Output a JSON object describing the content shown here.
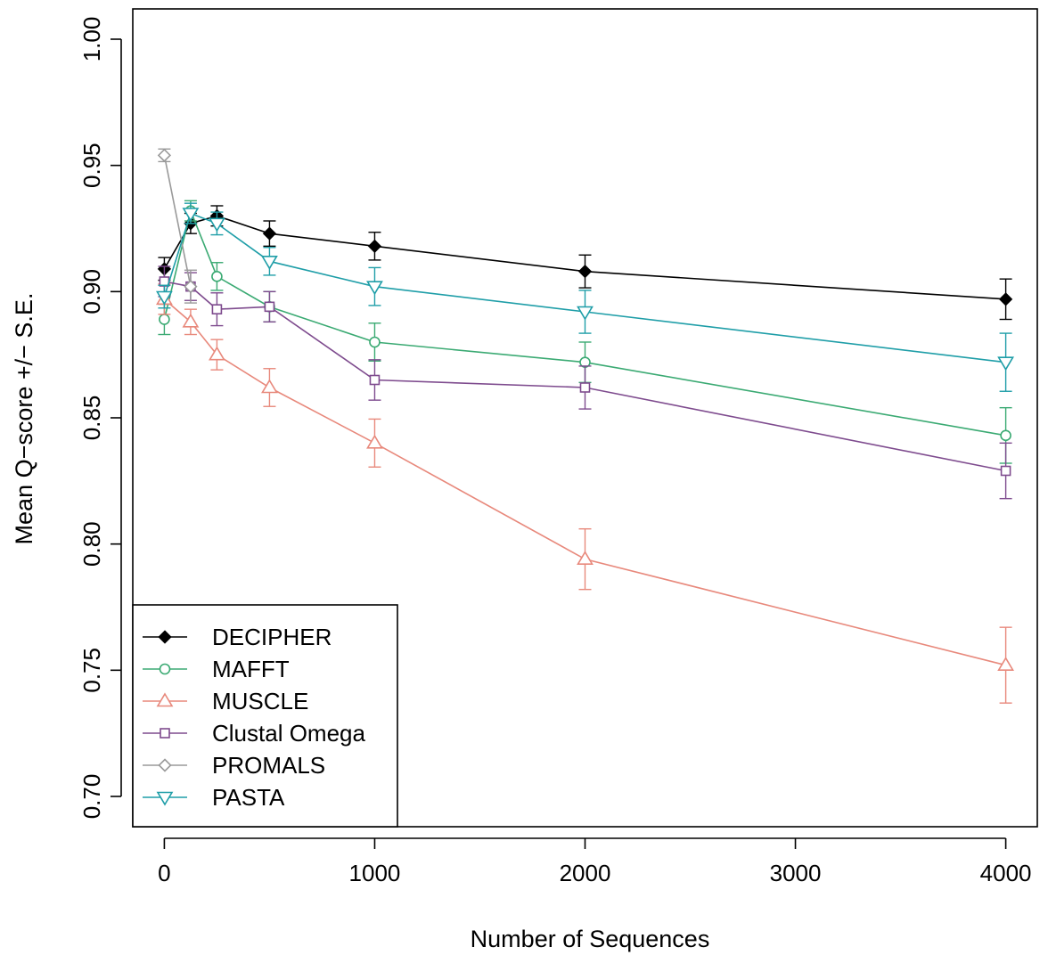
{
  "chart_data": {
    "type": "line",
    "title": "",
    "xlabel": "Number of Sequences",
    "ylabel": "Mean Q−score +/− S.E.",
    "xlim": [
      -150,
      4150
    ],
    "ylim": [
      0.688,
      1.012
    ],
    "x_ticks": [
      0,
      1000,
      2000,
      3000,
      4000
    ],
    "x_tick_labels": [
      "0",
      "1000",
      "2000",
      "3000",
      "4000"
    ],
    "y_ticks": [
      0.7,
      0.75,
      0.8,
      0.85,
      0.9,
      0.95,
      1.0
    ],
    "y_tick_labels": [
      "0.70",
      "0.75",
      "0.80",
      "0.85",
      "0.90",
      "0.95",
      "1.00"
    ],
    "grid": false,
    "legend_position": "bottom-left",
    "series": [
      {
        "name": "DECIPHER",
        "color": "#000000",
        "marker": "diamond-filled",
        "points": [
          {
            "x": 0,
            "y": 0.909,
            "se": 0.0045
          },
          {
            "x": 125,
            "y": 0.927,
            "se": 0.004
          },
          {
            "x": 250,
            "y": 0.93,
            "se": 0.004
          },
          {
            "x": 500,
            "y": 0.923,
            "se": 0.005
          },
          {
            "x": 1000,
            "y": 0.918,
            "se": 0.0055
          },
          {
            "x": 2000,
            "y": 0.908,
            "se": 0.0065
          },
          {
            "x": 4000,
            "y": 0.897,
            "se": 0.008
          }
        ]
      },
      {
        "name": "MAFFT",
        "color": "#3BAA73",
        "marker": "circle",
        "points": [
          {
            "x": 0,
            "y": 0.889,
            "se": 0.006
          },
          {
            "x": 125,
            "y": 0.932,
            "se": 0.004
          },
          {
            "x": 250,
            "y": 0.906,
            "se": 0.0055
          },
          {
            "x": 500,
            "y": 0.894,
            "se": 0.006
          },
          {
            "x": 1000,
            "y": 0.88,
            "se": 0.0075
          },
          {
            "x": 2000,
            "y": 0.872,
            "se": 0.008
          },
          {
            "x": 4000,
            "y": 0.843,
            "se": 0.011
          }
        ]
      },
      {
        "name": "MUSCLE",
        "color": "#E8897C",
        "marker": "triangle-up",
        "points": [
          {
            "x": 0,
            "y": 0.897,
            "se": 0.006
          },
          {
            "x": 125,
            "y": 0.888,
            "se": 0.005
          },
          {
            "x": 250,
            "y": 0.875,
            "se": 0.006
          },
          {
            "x": 500,
            "y": 0.862,
            "se": 0.0075
          },
          {
            "x": 1000,
            "y": 0.84,
            "se": 0.0095
          },
          {
            "x": 2000,
            "y": 0.794,
            "se": 0.012
          },
          {
            "x": 4000,
            "y": 0.752,
            "se": 0.015
          }
        ]
      },
      {
        "name": "Clustal Omega",
        "color": "#7E4B8E",
        "marker": "square",
        "points": [
          {
            "x": 0,
            "y": 0.904,
            "se": 0.006
          },
          {
            "x": 125,
            "y": 0.902,
            "se": 0.0055
          },
          {
            "x": 250,
            "y": 0.893,
            "se": 0.0065
          },
          {
            "x": 500,
            "y": 0.894,
            "se": 0.006
          },
          {
            "x": 1000,
            "y": 0.865,
            "se": 0.008
          },
          {
            "x": 2000,
            "y": 0.862,
            "se": 0.0085
          },
          {
            "x": 4000,
            "y": 0.829,
            "se": 0.011
          }
        ]
      },
      {
        "name": "PROMALS",
        "color": "#9A9A9A",
        "marker": "diamond",
        "points": [
          {
            "x": 0,
            "y": 0.954,
            "se": 0.0025
          },
          {
            "x": 125,
            "y": 0.902,
            "se": 0.0065
          }
        ]
      },
      {
        "name": "PASTA",
        "color": "#1F9EA8",
        "marker": "triangle-down",
        "points": [
          {
            "x": 0,
            "y": 0.898,
            "se": 0.0045
          },
          {
            "x": 125,
            "y": 0.931,
            "se": 0.004
          },
          {
            "x": 250,
            "y": 0.927,
            "se": 0.0045
          },
          {
            "x": 500,
            "y": 0.912,
            "se": 0.0055
          },
          {
            "x": 1000,
            "y": 0.902,
            "se": 0.0075
          },
          {
            "x": 2000,
            "y": 0.892,
            "se": 0.0085
          },
          {
            "x": 4000,
            "y": 0.872,
            "se": 0.0115
          }
        ]
      }
    ]
  }
}
